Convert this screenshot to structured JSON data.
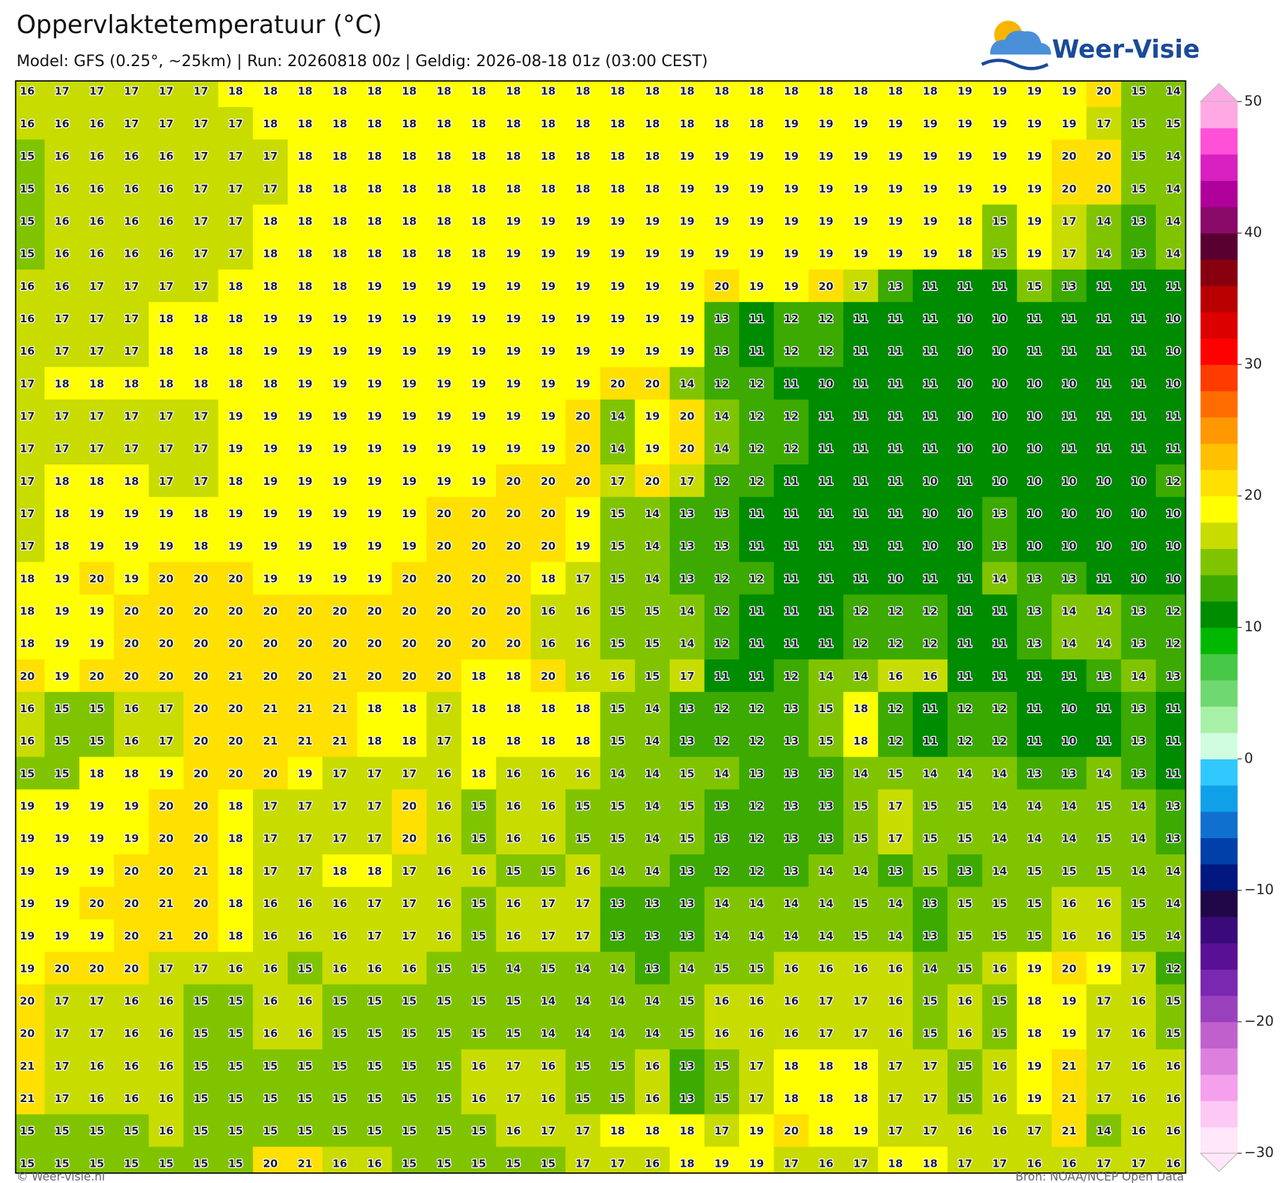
{
  "header": {
    "title": "Oppervlaktetemperatuur (°C)",
    "subtitle": "Model: GFS (0.25°, ~25km)  |  Run: 20260818 00z  |  Geldig: 2026-08-18 01z (03:00 CEST)",
    "logo": "Weer-Visie"
  },
  "grid": {
    "rows": [
      [
        16,
        17,
        17,
        17,
        17,
        17,
        18,
        18,
        18,
        18,
        18,
        18,
        18,
        18,
        18,
        18,
        18,
        18,
        18,
        18,
        18,
        18,
        18,
        18,
        18,
        18,
        18,
        19,
        19,
        19,
        19,
        20,
        15,
        14
      ],
      [
        16,
        16,
        16,
        17,
        17,
        17,
        17,
        18,
        18,
        18,
        18,
        18,
        18,
        18,
        18,
        18,
        18,
        18,
        18,
        18,
        18,
        18,
        19,
        19,
        19,
        19,
        19,
        19,
        19,
        19,
        19,
        17,
        15,
        15
      ],
      [
        15,
        16,
        16,
        16,
        16,
        17,
        17,
        17,
        18,
        18,
        18,
        18,
        18,
        18,
        18,
        18,
        18,
        18,
        18,
        19,
        19,
        19,
        19,
        19,
        19,
        19,
        19,
        19,
        19,
        19,
        20,
        20,
        15,
        14
      ],
      [
        15,
        16,
        16,
        16,
        16,
        17,
        17,
        17,
        18,
        18,
        18,
        18,
        18,
        18,
        18,
        18,
        18,
        18,
        18,
        19,
        19,
        19,
        19,
        19,
        19,
        19,
        19,
        19,
        19,
        19,
        20,
        20,
        15,
        14
      ],
      [
        15,
        16,
        16,
        16,
        16,
        17,
        17,
        18,
        18,
        18,
        18,
        18,
        18,
        18,
        19,
        19,
        19,
        19,
        19,
        19,
        19,
        19,
        19,
        19,
        19,
        19,
        19,
        18,
        15,
        19,
        17,
        14,
        13,
        14
      ],
      [
        15,
        16,
        16,
        16,
        16,
        17,
        17,
        18,
        18,
        18,
        18,
        18,
        18,
        18,
        19,
        19,
        19,
        19,
        19,
        19,
        19,
        19,
        19,
        19,
        19,
        19,
        19,
        18,
        15,
        19,
        17,
        14,
        13,
        14
      ],
      [
        16,
        16,
        17,
        17,
        17,
        17,
        18,
        18,
        18,
        18,
        19,
        19,
        19,
        19,
        19,
        19,
        19,
        19,
        19,
        19,
        20,
        19,
        19,
        20,
        17,
        13,
        11,
        11,
        11,
        15,
        13,
        11,
        11,
        11
      ],
      [
        16,
        17,
        17,
        17,
        18,
        18,
        18,
        19,
        19,
        19,
        19,
        19,
        19,
        19,
        19,
        19,
        19,
        19,
        19,
        19,
        13,
        11,
        12,
        12,
        11,
        11,
        11,
        10,
        10,
        11,
        11,
        11,
        11,
        10
      ],
      [
        16,
        17,
        17,
        17,
        18,
        18,
        18,
        19,
        19,
        19,
        19,
        19,
        19,
        19,
        19,
        19,
        19,
        19,
        19,
        19,
        13,
        11,
        12,
        12,
        11,
        11,
        11,
        10,
        10,
        11,
        11,
        11,
        11,
        10
      ],
      [
        17,
        18,
        18,
        18,
        18,
        18,
        18,
        18,
        19,
        19,
        19,
        19,
        19,
        19,
        19,
        19,
        19,
        20,
        20,
        14,
        12,
        12,
        11,
        10,
        11,
        11,
        11,
        10,
        10,
        10,
        10,
        11,
        11,
        10
      ],
      [
        17,
        17,
        17,
        17,
        17,
        17,
        19,
        19,
        19,
        19,
        19,
        19,
        19,
        19,
        19,
        19,
        20,
        14,
        19,
        20,
        14,
        12,
        12,
        11,
        11,
        11,
        11,
        10,
        10,
        10,
        11,
        11,
        11,
        11
      ],
      [
        17,
        17,
        17,
        17,
        17,
        17,
        19,
        19,
        19,
        19,
        19,
        19,
        19,
        19,
        19,
        19,
        20,
        14,
        19,
        20,
        14,
        12,
        12,
        11,
        11,
        11,
        11,
        10,
        10,
        10,
        11,
        11,
        11,
        11
      ],
      [
        17,
        18,
        18,
        18,
        17,
        17,
        18,
        19,
        19,
        19,
        19,
        19,
        19,
        19,
        20,
        20,
        20,
        17,
        20,
        17,
        12,
        12,
        11,
        11,
        11,
        11,
        10,
        11,
        10,
        10,
        10,
        10,
        10,
        12
      ],
      [
        17,
        18,
        19,
        19,
        19,
        18,
        19,
        19,
        19,
        19,
        19,
        19,
        20,
        20,
        20,
        20,
        19,
        15,
        14,
        13,
        13,
        11,
        11,
        11,
        11,
        11,
        10,
        10,
        13,
        10,
        10,
        10,
        10,
        10
      ],
      [
        17,
        18,
        19,
        19,
        19,
        18,
        19,
        19,
        19,
        19,
        19,
        19,
        20,
        20,
        20,
        20,
        19,
        15,
        14,
        13,
        13,
        11,
        11,
        11,
        11,
        11,
        10,
        10,
        13,
        10,
        10,
        10,
        10,
        10
      ],
      [
        18,
        19,
        20,
        19,
        20,
        20,
        20,
        19,
        19,
        19,
        19,
        20,
        20,
        20,
        20,
        18,
        17,
        15,
        14,
        13,
        12,
        12,
        11,
        11,
        11,
        10,
        11,
        11,
        14,
        13,
        13,
        11,
        10,
        10
      ],
      [
        18,
        19,
        19,
        20,
        20,
        20,
        20,
        20,
        20,
        20,
        20,
        20,
        20,
        20,
        20,
        16,
        16,
        15,
        15,
        14,
        12,
        11,
        11,
        11,
        12,
        12,
        12,
        11,
        11,
        13,
        14,
        14,
        13,
        12
      ],
      [
        18,
        19,
        19,
        20,
        20,
        20,
        20,
        20,
        20,
        20,
        20,
        20,
        20,
        20,
        20,
        16,
        16,
        15,
        15,
        14,
        12,
        11,
        11,
        11,
        12,
        12,
        12,
        11,
        11,
        13,
        14,
        14,
        13,
        12
      ],
      [
        20,
        19,
        20,
        20,
        20,
        20,
        21,
        20,
        20,
        21,
        20,
        20,
        20,
        18,
        18,
        20,
        16,
        16,
        15,
        17,
        11,
        11,
        12,
        14,
        14,
        16,
        16,
        11,
        11,
        11,
        11,
        13,
        14,
        13
      ],
      [
        16,
        15,
        15,
        16,
        17,
        20,
        20,
        21,
        21,
        21,
        18,
        18,
        17,
        18,
        18,
        18,
        18,
        15,
        14,
        13,
        12,
        12,
        13,
        15,
        18,
        12,
        11,
        12,
        12,
        11,
        10,
        11,
        13,
        11
      ],
      [
        16,
        15,
        15,
        16,
        17,
        20,
        20,
        21,
        21,
        21,
        18,
        18,
        17,
        18,
        18,
        18,
        18,
        15,
        14,
        13,
        12,
        12,
        13,
        15,
        18,
        12,
        11,
        12,
        12,
        11,
        10,
        11,
        13,
        11
      ],
      [
        15,
        15,
        18,
        18,
        19,
        20,
        20,
        20,
        19,
        17,
        17,
        17,
        16,
        18,
        16,
        16,
        16,
        14,
        14,
        15,
        14,
        13,
        13,
        13,
        14,
        15,
        14,
        14,
        14,
        13,
        13,
        14,
        13,
        11
      ],
      [
        19,
        19,
        19,
        19,
        20,
        20,
        18,
        17,
        17,
        17,
        17,
        20,
        16,
        15,
        16,
        16,
        15,
        15,
        14,
        15,
        13,
        12,
        13,
        13,
        15,
        17,
        15,
        15,
        14,
        14,
        14,
        15,
        14,
        13
      ],
      [
        19,
        19,
        19,
        19,
        20,
        20,
        18,
        17,
        17,
        17,
        17,
        20,
        16,
        15,
        16,
        16,
        15,
        15,
        14,
        15,
        13,
        12,
        13,
        13,
        15,
        17,
        15,
        15,
        14,
        14,
        14,
        15,
        14,
        13
      ],
      [
        19,
        19,
        19,
        20,
        20,
        21,
        18,
        17,
        17,
        18,
        18,
        17,
        16,
        16,
        15,
        15,
        16,
        14,
        14,
        13,
        12,
        12,
        13,
        14,
        14,
        13,
        15,
        13,
        14,
        15,
        15,
        15,
        14,
        14
      ],
      [
        19,
        19,
        20,
        20,
        21,
        20,
        18,
        16,
        16,
        16,
        17,
        17,
        16,
        15,
        16,
        17,
        17,
        13,
        13,
        13,
        14,
        14,
        14,
        14,
        15,
        14,
        13,
        15,
        15,
        15,
        16,
        16,
        15,
        14
      ],
      [
        19,
        19,
        19,
        20,
        21,
        20,
        18,
        16,
        16,
        16,
        17,
        17,
        16,
        15,
        16,
        17,
        17,
        13,
        13,
        13,
        14,
        14,
        14,
        14,
        15,
        14,
        13,
        15,
        15,
        15,
        16,
        16,
        15,
        14
      ],
      [
        19,
        20,
        20,
        20,
        17,
        17,
        16,
        16,
        15,
        16,
        16,
        16,
        15,
        15,
        14,
        15,
        14,
        14,
        13,
        14,
        15,
        15,
        16,
        16,
        16,
        16,
        14,
        15,
        16,
        19,
        20,
        19,
        17,
        12
      ],
      [
        20,
        17,
        17,
        16,
        16,
        15,
        15,
        16,
        16,
        15,
        15,
        15,
        15,
        15,
        15,
        14,
        14,
        14,
        14,
        15,
        16,
        16,
        16,
        17,
        17,
        16,
        15,
        16,
        15,
        18,
        19,
        17,
        16,
        15
      ],
      [
        20,
        17,
        17,
        16,
        16,
        15,
        15,
        16,
        16,
        15,
        15,
        15,
        15,
        15,
        15,
        14,
        14,
        14,
        14,
        15,
        16,
        16,
        16,
        17,
        17,
        16,
        15,
        16,
        15,
        18,
        19,
        17,
        16,
        15
      ],
      [
        21,
        17,
        16,
        16,
        16,
        15,
        15,
        15,
        15,
        15,
        15,
        15,
        15,
        16,
        17,
        16,
        15,
        15,
        16,
        13,
        15,
        17,
        18,
        18,
        18,
        17,
        17,
        15,
        16,
        19,
        21,
        17,
        16,
        16
      ],
      [
        21,
        17,
        16,
        16,
        16,
        15,
        15,
        15,
        15,
        15,
        15,
        15,
        15,
        16,
        17,
        16,
        15,
        15,
        16,
        13,
        15,
        17,
        18,
        18,
        18,
        17,
        17,
        15,
        16,
        19,
        21,
        17,
        16,
        16
      ],
      [
        15,
        15,
        15,
        15,
        16,
        15,
        15,
        15,
        15,
        15,
        15,
        15,
        15,
        15,
        16,
        17,
        17,
        18,
        18,
        18,
        17,
        19,
        20,
        18,
        19,
        17,
        17,
        16,
        16,
        17,
        21,
        14,
        16,
        16
      ],
      [
        15,
        15,
        15,
        15,
        15,
        15,
        15,
        20,
        21,
        16,
        16,
        15,
        15,
        15,
        15,
        15,
        17,
        17,
        16,
        18,
        19,
        19,
        17,
        16,
        17,
        18,
        18,
        17,
        17,
        16,
        16,
        17,
        17,
        16
      ]
    ]
  },
  "colorbar": {
    "lim": [
      -30,
      50
    ],
    "ticks": [
      {
        "value": -30,
        "label": "−30"
      },
      {
        "value": -20,
        "label": "−20"
      },
      {
        "value": -10,
        "label": "−10"
      },
      0,
      10,
      20,
      30,
      40,
      50
    ],
    "colors": [
      "#ffe6f8",
      "#fcc8f4",
      "#f4a0ec",
      "#dd80dd",
      "#c060cc",
      "#9a40bc",
      "#7a28b0",
      "#5a1094",
      "#3a0a7a",
      "#200848",
      "#001880",
      "#0040a8",
      "#1070d0",
      "#10a0e8",
      "#30c8ff",
      "#d0fce0",
      "#a8f0a8",
      "#70d870",
      "#48c848",
      "#00b800",
      "#008c00",
      "#3caa00",
      "#80c400",
      "#c8dc00",
      "#ffff00",
      "#ffe000",
      "#ffc000",
      "#ff9800",
      "#ff6c00",
      "#ff3c00",
      "#ff0000",
      "#dd0000",
      "#b80000",
      "#880010",
      "#5a0030",
      "#8a0a6a",
      "#b0009a",
      "#d820c0",
      "#ff50d8",
      "#ffa8e4"
    ]
  },
  "footer": {
    "left": "© Weer-visie.nl",
    "right": "Bron: NOAA/NCEP Open Data"
  }
}
